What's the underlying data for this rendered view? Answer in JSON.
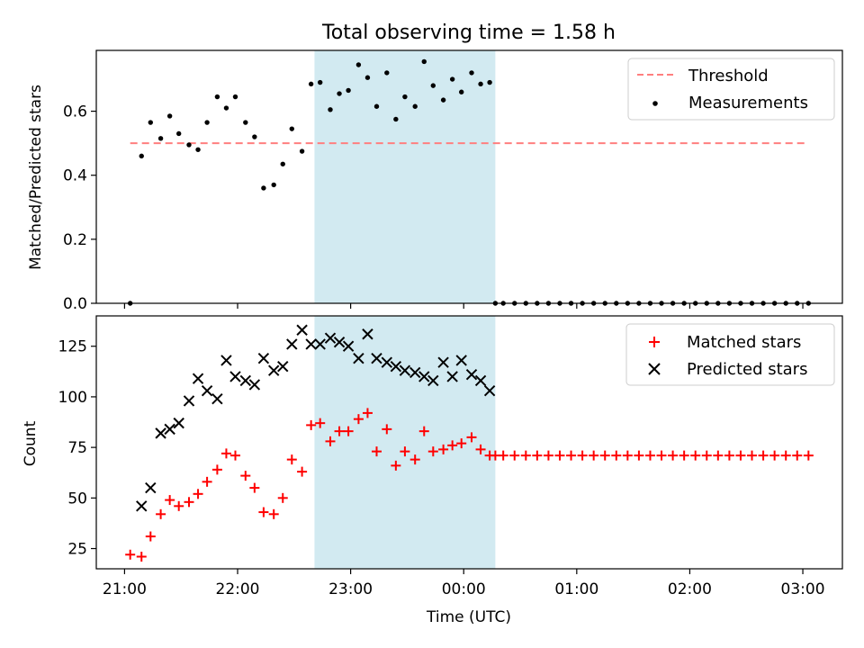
{
  "figure": {
    "title": "Total observing time = 1.58 h",
    "xlabel": "Time (UTC)",
    "x_ticks": [
      "21:00",
      "22:00",
      "23:00",
      "00:00",
      "01:00",
      "02:00",
      "03:00"
    ],
    "x_tick_hours": [
      0,
      1,
      2,
      3,
      4,
      5,
      6
    ],
    "x_origin": "21:00",
    "x_range_hours": [
      -0.25,
      6.35
    ],
    "highlight": {
      "start_hours": 1.68,
      "end_hours": 3.28,
      "color": "#add8e6"
    }
  },
  "chart_data": [
    {
      "type": "scatter",
      "ylabel": "Matched/Predicted stars",
      "ylim": [
        0,
        0.79
      ],
      "y_ticks": [
        0.0,
        0.2,
        0.4,
        0.6
      ],
      "y_tick_labels": [
        "0.0",
        "0.2",
        "0.4",
        "0.6"
      ],
      "legend_position": "top-right",
      "threshold": {
        "name": "Threshold",
        "value": 0.5,
        "x_start_hours": 0.05,
        "x_end_hours": 6.05,
        "color": "#ff7f7f"
      },
      "series": [
        {
          "name": "Measurements",
          "color": "#000000",
          "x_hours": [
            0.05,
            0.15,
            0.23,
            0.32,
            0.4,
            0.48,
            0.57,
            0.65,
            0.73,
            0.82,
            0.9,
            0.98,
            1.07,
            1.15,
            1.23,
            1.32,
            1.4,
            1.48,
            1.57,
            1.65,
            1.73,
            1.82,
            1.9,
            1.98,
            2.07,
            2.15,
            2.23,
            2.32,
            2.4,
            2.48,
            2.57,
            2.65,
            2.73,
            2.82,
            2.9,
            2.98,
            3.07,
            3.15,
            3.23,
            3.28,
            3.35,
            3.45,
            3.55,
            3.65,
            3.75,
            3.85,
            3.95,
            4.05,
            4.15,
            4.25,
            4.35,
            4.45,
            4.55,
            4.65,
            4.75,
            4.85,
            4.95,
            5.05,
            5.15,
            5.25,
            5.35,
            5.45,
            5.55,
            5.65,
            5.75,
            5.85,
            5.95,
            6.05
          ],
          "y": [
            0.0,
            0.46,
            0.565,
            0.515,
            0.585,
            0.53,
            0.495,
            0.48,
            0.565,
            0.645,
            0.61,
            0.645,
            0.565,
            0.52,
            0.36,
            0.37,
            0.435,
            0.545,
            0.475,
            0.685,
            0.69,
            0.605,
            0.655,
            0.665,
            0.745,
            0.705,
            0.615,
            0.72,
            0.575,
            0.645,
            0.615,
            0.755,
            0.68,
            0.635,
            0.7,
            0.66,
            0.72,
            0.685,
            0.69,
            0.0,
            0.0,
            0.0,
            0.0,
            0.0,
            0.0,
            0.0,
            0.0,
            0.0,
            0.0,
            0.0,
            0.0,
            0.0,
            0.0,
            0.0,
            0.0,
            0.0,
            0.0,
            0.0,
            0.0,
            0.0,
            0.0,
            0.0,
            0.0,
            0.0,
            0.0,
            0.0,
            0.0,
            0.0
          ]
        }
      ]
    },
    {
      "type": "scatter",
      "ylabel": "Count",
      "ylim": [
        15,
        140
      ],
      "y_ticks": [
        25,
        50,
        75,
        100,
        125
      ],
      "y_tick_labels": [
        "25",
        "50",
        "75",
        "100",
        "125"
      ],
      "legend_position": "top-right",
      "series": [
        {
          "name": "Matched stars",
          "marker": "plus",
          "color": "#ff0000",
          "x_hours": [
            0.05,
            0.15,
            0.23,
            0.32,
            0.4,
            0.48,
            0.57,
            0.65,
            0.73,
            0.82,
            0.9,
            0.98,
            1.07,
            1.15,
            1.23,
            1.32,
            1.4,
            1.48,
            1.57,
            1.65,
            1.73,
            1.82,
            1.9,
            1.98,
            2.07,
            2.15,
            2.23,
            2.32,
            2.4,
            2.48,
            2.57,
            2.65,
            2.73,
            2.82,
            2.9,
            2.98,
            3.07,
            3.15,
            3.23,
            3.28,
            3.35,
            3.45,
            3.55,
            3.65,
            3.75,
            3.85,
            3.95,
            4.05,
            4.15,
            4.25,
            4.35,
            4.45,
            4.55,
            4.65,
            4.75,
            4.85,
            4.95,
            5.05,
            5.15,
            5.25,
            5.35,
            5.45,
            5.55,
            5.65,
            5.75,
            5.85,
            5.95,
            6.05
          ],
          "y": [
            22,
            21,
            31,
            42,
            49,
            46,
            48,
            52,
            58,
            64,
            72,
            71,
            61,
            55,
            43,
            42,
            50,
            69,
            63,
            86,
            87,
            78,
            83,
            83,
            89,
            92,
            73,
            84,
            66,
            73,
            69,
            83,
            73,
            74,
            76,
            77,
            80,
            74,
            71,
            71,
            71,
            71,
            71,
            71,
            71,
            71,
            71,
            71,
            71,
            71,
            71,
            71,
            71,
            71,
            71,
            71,
            71,
            71,
            71,
            71,
            71,
            71,
            71,
            71,
            71,
            71,
            71,
            71
          ]
        },
        {
          "name": "Predicted stars",
          "marker": "x",
          "color": "#000000",
          "x_hours": [
            0.15,
            0.23,
            0.32,
            0.4,
            0.48,
            0.57,
            0.65,
            0.73,
            0.82,
            0.9,
            0.98,
            1.07,
            1.15,
            1.23,
            1.32,
            1.4,
            1.48,
            1.57,
            1.65,
            1.73,
            1.82,
            1.9,
            1.98,
            2.07,
            2.15,
            2.23,
            2.32,
            2.4,
            2.48,
            2.57,
            2.65,
            2.73,
            2.82,
            2.9,
            2.98,
            3.07,
            3.15,
            3.23
          ],
          "y": [
            46,
            55,
            82,
            84,
            87,
            98,
            109,
            103,
            99,
            118,
            110,
            108,
            106,
            119,
            113,
            115,
            126,
            133,
            126,
            126,
            129,
            127,
            125,
            119,
            131,
            119,
            117,
            115,
            113,
            112,
            110,
            108,
            117,
            110,
            118,
            111,
            108,
            103
          ]
        }
      ]
    }
  ]
}
